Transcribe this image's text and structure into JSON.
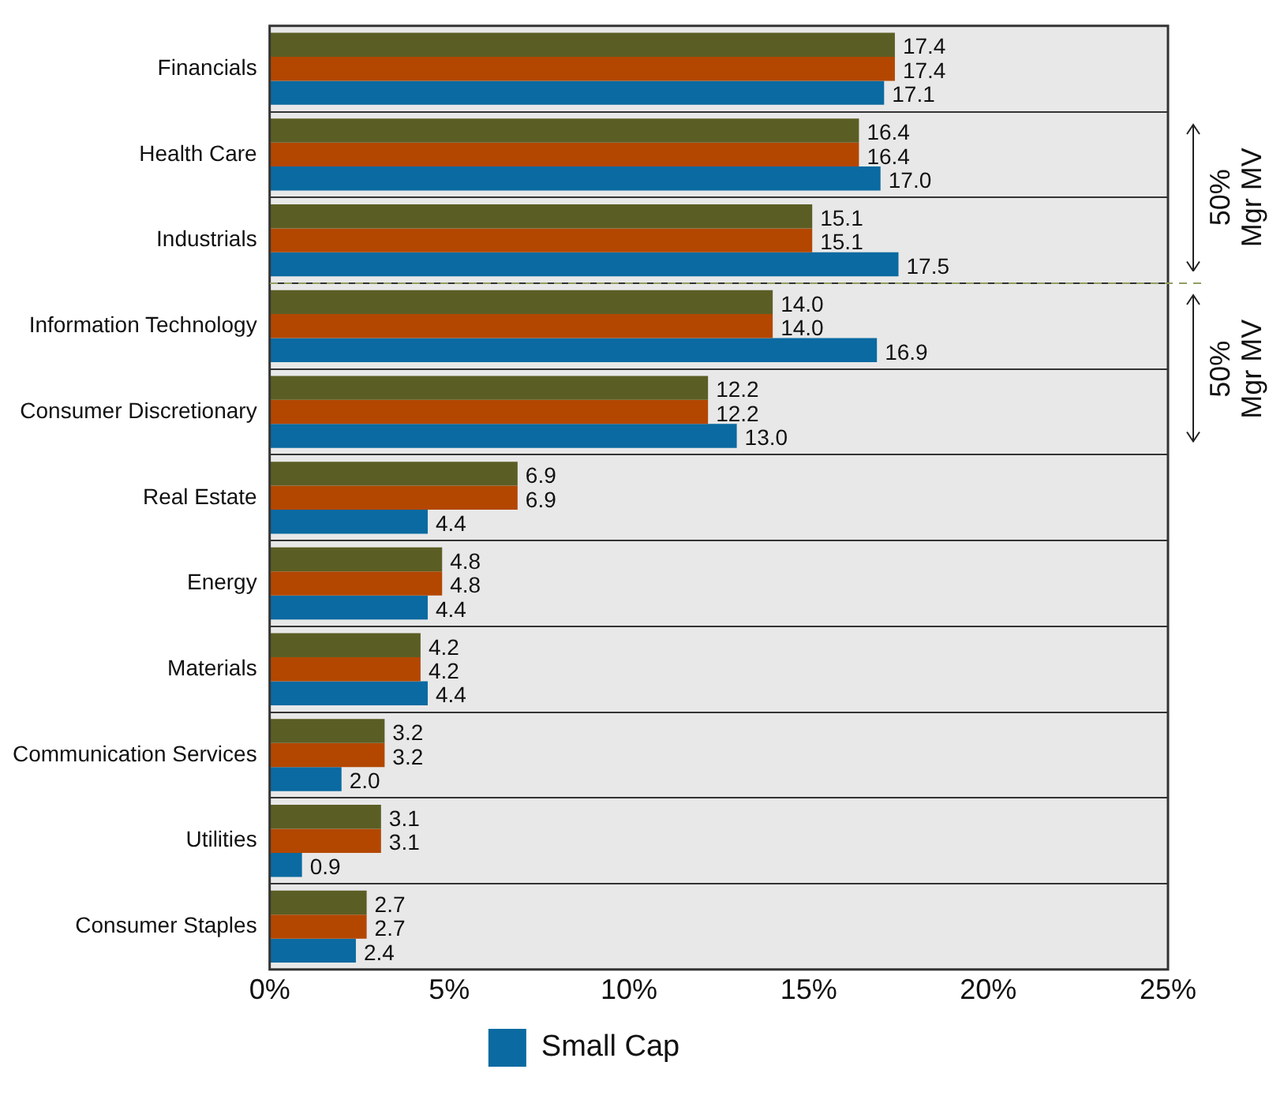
{
  "chart_data": {
    "type": "bar",
    "orientation": "horizontal",
    "categories": [
      "Financials",
      "Health Care",
      "Industrials",
      "Information Technology",
      "Consumer Discretionary",
      "Real Estate",
      "Energy",
      "Materials",
      "Communication Services",
      "Utilities",
      "Consumer Staples"
    ],
    "series": [
      {
        "color": "#5b5e24",
        "values": [
          17.4,
          16.4,
          15.1,
          14.0,
          12.2,
          6.9,
          4.8,
          4.2,
          3.2,
          3.1,
          2.7
        ],
        "value_labels": [
          "17.4",
          "16.4",
          "15.1",
          "14.0",
          "12.2",
          "6.9",
          "4.8",
          "4.2",
          "3.2",
          "3.1",
          "2.7"
        ]
      },
      {
        "color": "#b34700",
        "values": [
          17.4,
          16.4,
          15.1,
          14.0,
          12.2,
          6.9,
          4.8,
          4.2,
          3.2,
          3.1,
          2.7
        ],
        "value_labels": [
          "17.4",
          "16.4",
          "15.1",
          "14.0",
          "12.2",
          "6.9",
          "4.8",
          "4.2",
          "3.2",
          "3.1",
          "2.7"
        ]
      },
      {
        "name": "Small Cap",
        "color": "#0a6aa1",
        "values": [
          17.1,
          17.0,
          17.5,
          16.9,
          13.0,
          4.4,
          4.4,
          4.4,
          2.0,
          0.9,
          2.4
        ],
        "value_labels": [
          "17.1",
          "17.0",
          "17.5",
          "16.9",
          "13.0",
          "4.4",
          "4.4",
          "4.4",
          "2.0",
          "0.9",
          "2.4"
        ]
      }
    ],
    "xlim": [
      0,
      25
    ],
    "xticks": [
      {
        "value": 0,
        "label": "0%"
      },
      {
        "value": 5,
        "label": "5%"
      },
      {
        "value": 10,
        "label": "10%"
      },
      {
        "value": 15,
        "label": "15%"
      },
      {
        "value": 20,
        "label": "20%"
      },
      {
        "value": 25,
        "label": "25%"
      }
    ],
    "grid": "y",
    "legend": "bottom",
    "annotations": [
      "50% Mgr MV",
      "50% Mgr MV"
    ]
  }
}
